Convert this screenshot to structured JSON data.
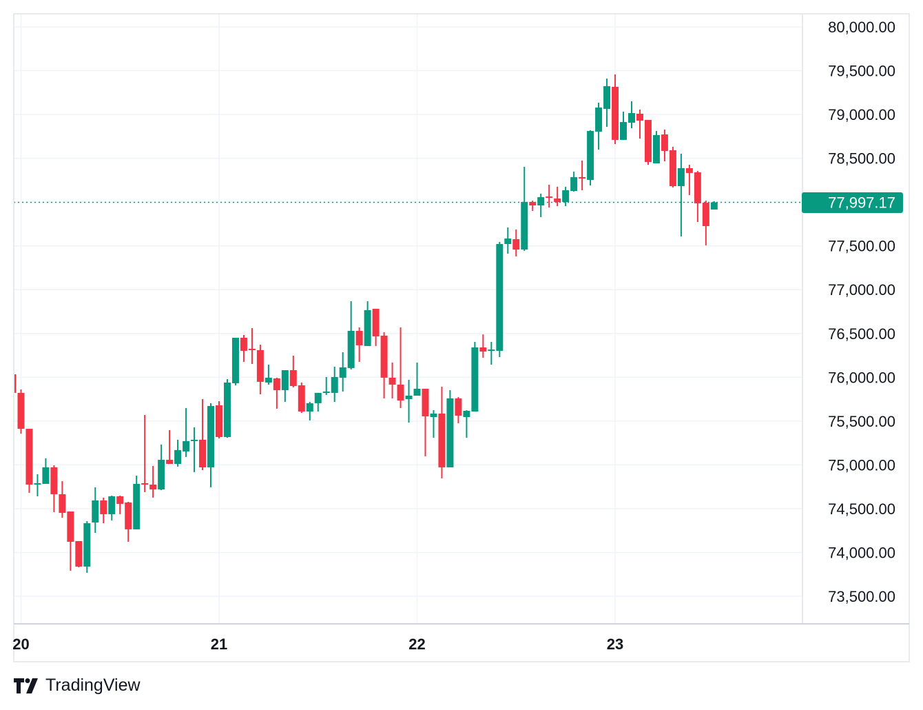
{
  "chart_data": {
    "type": "candlestick",
    "interval": "1h",
    "colors": {
      "up": "#089981",
      "down": "#F23645",
      "grid": "#F0F3FA",
      "border": "#E0E3EB",
      "text": "#131722"
    },
    "ylim": [
      73300,
      80150
    ],
    "y_ticks": [
      "80,000.00",
      "79,500.00",
      "79,000.00",
      "78,500.00",
      "78,000.00",
      "77,500.00",
      "77,000.00",
      "76,500.00",
      "76,000.00",
      "75,500.00",
      "75,000.00",
      "74,500.00",
      "74,000.00",
      "73,500.00"
    ],
    "y_tick_values": [
      80000,
      79500,
      79000,
      78500,
      78000,
      77500,
      77000,
      76500,
      76000,
      75500,
      75000,
      74500,
      74000,
      73500
    ],
    "hidden_y_tick": "78,000.00",
    "x_ticks": [
      {
        "label": "20",
        "candle": 1
      },
      {
        "label": "21",
        "candle": 25
      },
      {
        "label": "22",
        "candle": 49
      },
      {
        "label": "23",
        "candle": 73
      }
    ],
    "last_price": 77997.17,
    "last_price_label": "77,997.17",
    "grid": true,
    "candles": [
      [
        76034,
        76034,
        75822,
        75822
      ],
      [
        75822,
        75861,
        75357,
        75412
      ],
      [
        75412,
        75412,
        74681,
        74775
      ],
      [
        74780,
        74893,
        74641,
        74791
      ],
      [
        74783,
        75074,
        74783,
        74972
      ],
      [
        74972,
        74995,
        74460,
        74665
      ],
      [
        74665,
        74814,
        74397,
        74452
      ],
      [
        74468,
        74468,
        73791,
        74122
      ],
      [
        74130,
        74130,
        73831,
        73839
      ],
      [
        73839,
        74358,
        73768,
        74334
      ],
      [
        74342,
        74744,
        74224,
        74594
      ],
      [
        74594,
        74626,
        74334,
        74437
      ],
      [
        74437,
        74649,
        74366,
        74641
      ],
      [
        74641,
        74649,
        74437,
        74555
      ],
      [
        74571,
        74578,
        74122,
        74264
      ],
      [
        74264,
        74877,
        74264,
        74783
      ],
      [
        74791,
        75570,
        74689,
        74775
      ],
      [
        74775,
        74988,
        74626,
        74720
      ],
      [
        74720,
        75232,
        74712,
        75058
      ],
      [
        75058,
        75397,
        75011,
        75011
      ],
      [
        75011,
        75287,
        74980,
        75169
      ],
      [
        75153,
        75649,
        75090,
        75271
      ],
      [
        75280,
        75428,
        74917,
        75287
      ],
      [
        75287,
        75751,
        74940,
        74972
      ],
      [
        74972,
        75704,
        74744,
        75672
      ],
      [
        75680,
        75727,
        75302,
        75318
      ],
      [
        75318,
        75979,
        75310,
        75940
      ],
      [
        75932,
        76451,
        75908,
        76451
      ],
      [
        76451,
        76483,
        76176,
        76302
      ],
      [
        76325,
        76561,
        76152,
        76310
      ],
      [
        76310,
        76372,
        75806,
        75948
      ],
      [
        75940,
        76144,
        75916,
        75995
      ],
      [
        75987,
        75995,
        75641,
        75853
      ],
      [
        75853,
        76081,
        75719,
        76081
      ],
      [
        76081,
        76247,
        75885,
        75900
      ],
      [
        75908,
        75940,
        75593,
        75609
      ],
      [
        75609,
        75719,
        75507,
        75704
      ],
      [
        75704,
        75822,
        75609,
        75822
      ],
      [
        75822,
        76003,
        75798,
        75837
      ],
      [
        75822,
        76121,
        75719,
        76003
      ],
      [
        75995,
        76286,
        75837,
        76113
      ],
      [
        76105,
        76868,
        76089,
        76530
      ],
      [
        76530,
        76569,
        76176,
        76365
      ],
      [
        76357,
        76868,
        76357,
        76766
      ],
      [
        76782,
        76782,
        76357,
        76467
      ],
      [
        76475,
        76514,
        75759,
        75995
      ],
      [
        75995,
        76168,
        75759,
        75916
      ],
      [
        75916,
        76569,
        75649,
        75735
      ],
      [
        75751,
        75971,
        75483,
        75790
      ],
      [
        75790,
        76168,
        75790,
        75869
      ],
      [
        75869,
        75869,
        75098,
        75554
      ],
      [
        75546,
        75625,
        75310,
        75586
      ],
      [
        75586,
        75892,
        74846,
        74972
      ],
      [
        74972,
        75853,
        74972,
        75759
      ],
      [
        75759,
        75774,
        75475,
        75562
      ],
      [
        75546,
        75625,
        75310,
        75617
      ],
      [
        75609,
        76404,
        75609,
        76341
      ],
      [
        76341,
        76490,
        76223,
        76294
      ],
      [
        76302,
        76404,
        76144,
        76317
      ],
      [
        76302,
        77545,
        76231,
        77521
      ],
      [
        77521,
        77710,
        77411,
        77584
      ],
      [
        77576,
        77687,
        77380,
        77458
      ],
      [
        77458,
        78403,
        77443,
        78001
      ],
      [
        78001,
        78017,
        77899,
        77962
      ],
      [
        77962,
        78096,
        77828,
        78056
      ],
      [
        78064,
        78198,
        77938,
        78049
      ],
      [
        78041,
        78175,
        77954,
        78001
      ],
      [
        78001,
        78175,
        77954,
        78135
      ],
      [
        78127,
        78348,
        78119,
        78285
      ],
      [
        78285,
        78474,
        78135,
        78269
      ],
      [
        78253,
        78820,
        78190,
        78812
      ],
      [
        78804,
        79134,
        78599,
        79079
      ],
      [
        79064,
        79410,
        78859,
        79323
      ],
      [
        79316,
        79457,
        78662,
        78710
      ],
      [
        78710,
        79032,
        78710,
        78914
      ],
      [
        78906,
        79150,
        78843,
        79016
      ],
      [
        79009,
        79056,
        78725,
        78930
      ],
      [
        78938,
        78938,
        78426,
        78458
      ],
      [
        78442,
        78812,
        78442,
        78765
      ],
      [
        78772,
        78828,
        78466,
        78584
      ],
      [
        78592,
        78631,
        78167,
        78182
      ],
      [
        78182,
        78552,
        77608,
        78387
      ],
      [
        78387,
        78426,
        78080,
        78332
      ],
      [
        78340,
        78355,
        77773,
        77986
      ],
      [
        77993,
        78017,
        77506,
        77726
      ],
      [
        77915,
        78010,
        77915,
        77997.17
      ]
    ]
  },
  "footer": {
    "brand": "TradingView",
    "logo_icon": "tradingview-logo-icon"
  }
}
